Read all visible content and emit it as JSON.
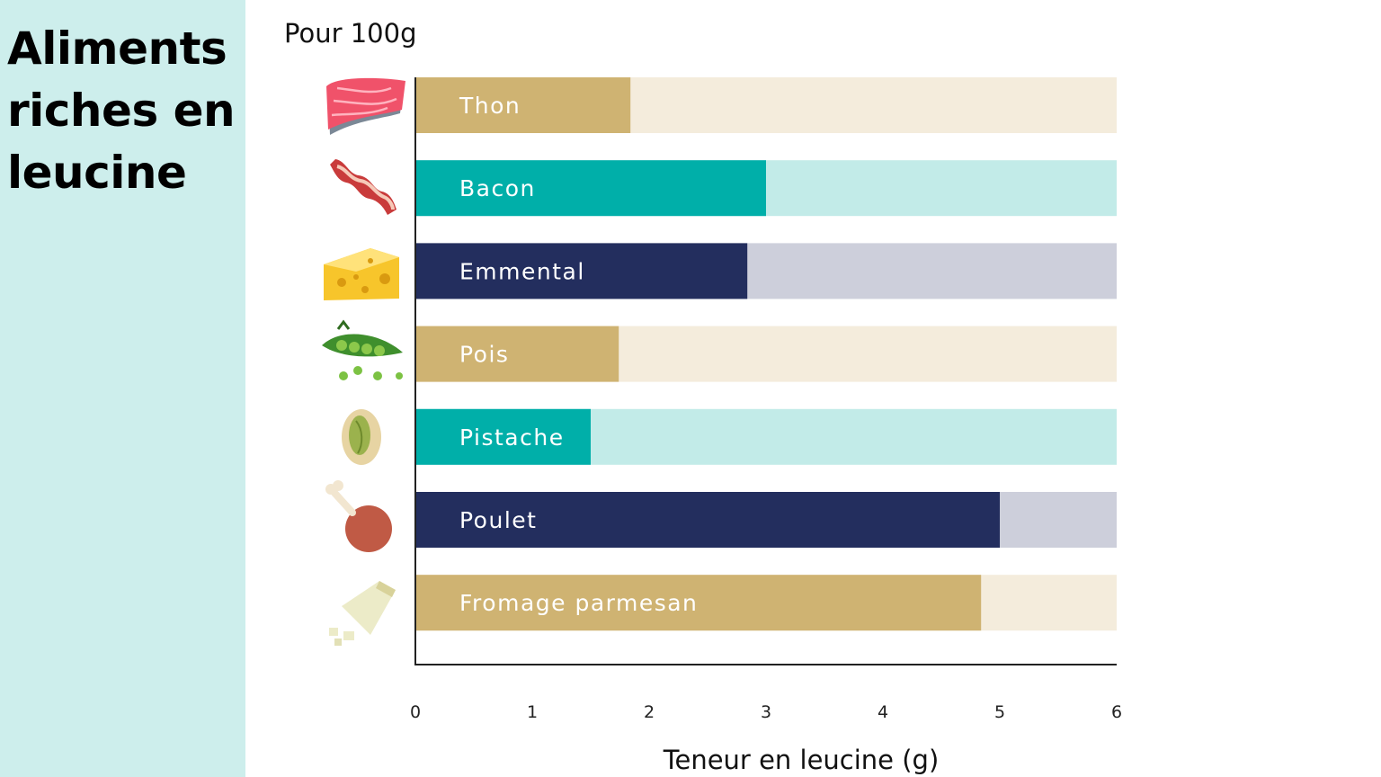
{
  "sidebar": {
    "title_lines": [
      "Aliments",
      "riches en",
      "leucine"
    ]
  },
  "unit_note": "Pour 100g",
  "chart_data": {
    "type": "bar",
    "orientation": "horizontal",
    "categories": [
      "Thon",
      "Bacon",
      "Emmental",
      "Pois",
      "Pistache",
      "Poulet",
      "Fromage parmesan"
    ],
    "values": [
      1.84,
      3.0,
      2.84,
      1.74,
      1.5,
      5.0,
      4.84
    ],
    "xlim": [
      0,
      6
    ],
    "xticks": [
      "0",
      "1",
      "2",
      "3",
      "4",
      "5",
      "6"
    ],
    "xlabel": "Teneur en leucine  (g)",
    "grid": false,
    "palette": [
      {
        "fill": "#cfb372",
        "track": "#f4ecdc"
      },
      {
        "fill": "#00afa9",
        "track": "#c2ebe8"
      },
      {
        "fill": "#232e5e",
        "track": "#cdcfdb"
      }
    ],
    "icons": [
      "tuna-steak-icon",
      "bacon-icon",
      "emmental-cheese-icon",
      "peas-icon",
      "pistachio-icon",
      "chicken-leg-icon",
      "parmesan-icon"
    ]
  }
}
